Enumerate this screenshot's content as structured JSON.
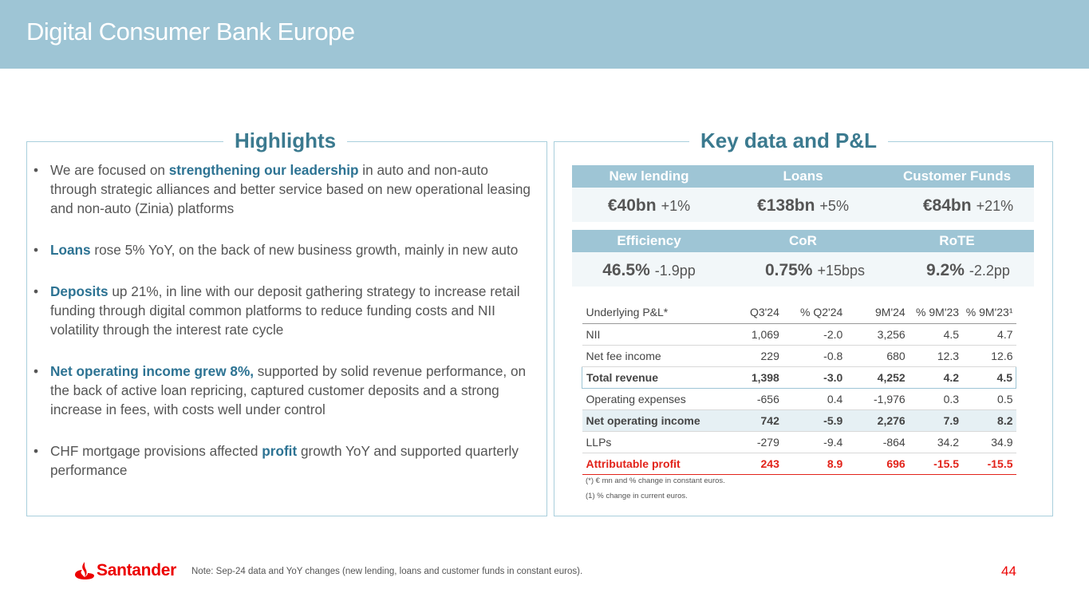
{
  "header": {
    "title": "Digital Consumer Bank Europe"
  },
  "highlights": {
    "title": "Highlights",
    "bullets": [
      {
        "pre": "We are focused on ",
        "bold": "strengthening our leadership",
        "post": " in auto and non-auto through strategic alliances and better service based on new operational leasing and non-auto (Zinia) platforms"
      },
      {
        "pre": "",
        "bold": "Loans",
        "post": " rose 5% YoY, on the back of new business growth, mainly in new auto"
      },
      {
        "pre": "",
        "bold": "Deposits",
        "post": " up 21%, in line with our deposit gathering strategy to increase retail funding through digital common platforms to reduce funding costs and NII volatility through the interest rate cycle"
      },
      {
        "pre": "",
        "bold": "Net operating income grew 8%,",
        "post": " supported by solid revenue performance, on the back of active loan repricing, captured customer deposits and a strong increase in fees, with costs well under control"
      },
      {
        "pre": "CHF mortgage provisions affected ",
        "bold": "profit",
        "post": " growth YoY and supported quarterly performance"
      }
    ]
  },
  "keydata": {
    "title": "Key data and P&L",
    "row1": [
      {
        "label": "New lending",
        "value": "€40bn",
        "change": "+1%"
      },
      {
        "label": "Loans",
        "value": "€138bn",
        "change": "+5%"
      },
      {
        "label": "Customer Funds",
        "value": "€84bn",
        "change": "+21%"
      }
    ],
    "row2": [
      {
        "label": "Efficiency",
        "value": "46.5%",
        "change": "-1.9pp"
      },
      {
        "label": "CoR",
        "value": "0.75%",
        "change": "+15bps"
      },
      {
        "label": "RoTE",
        "value": "9.2%",
        "change": "-2.2pp"
      }
    ]
  },
  "pl_table": {
    "headers": [
      "Underlying P&L*",
      "Q3'24",
      "% Q2'24",
      "9M'24",
      "% 9M'23",
      "% 9M'23¹"
    ],
    "rows": [
      [
        "NII",
        "1,069",
        "-2.0",
        "3,256",
        "4.5",
        "4.7"
      ],
      [
        "Net fee income",
        "229",
        "-0.8",
        "680",
        "12.3",
        "12.6"
      ],
      [
        "Total revenue",
        "1,398",
        "-3.0",
        "4,252",
        "4.2",
        "4.5"
      ],
      [
        "Operating expenses",
        "-656",
        "0.4",
        "-1,976",
        "0.3",
        "0.5"
      ],
      [
        "Net operating income",
        "742",
        "-5.9",
        "2,276",
        "7.9",
        "8.2"
      ],
      [
        "LLPs",
        "-279",
        "-9.4",
        "-864",
        "34.2",
        "34.9"
      ],
      [
        "Attributable profit",
        "243",
        "8.9",
        "696",
        "-15.5",
        "-15.5"
      ]
    ],
    "footnotes": [
      "(*) € mn and % change in constant euros.",
      "(1)  % change in current euros."
    ]
  },
  "footer": {
    "logo_text": "Santander",
    "note": "Note: Sep-24 data and YoY changes (new lending, loans and customer funds in constant euros).",
    "page_number": "44"
  },
  "colors": {
    "header_bg": "#9ec5d5",
    "accent": "#2d7393",
    "brand_red": "#ec0000"
  }
}
